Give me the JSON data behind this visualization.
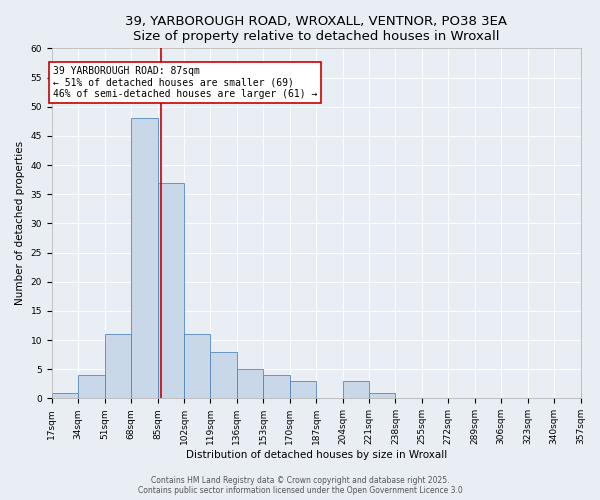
{
  "title_line1": "39, YARBOROUGH ROAD, WROXALL, VENTNOR, PO38 3EA",
  "title_line2": "Size of property relative to detached houses in Wroxall",
  "xlabel": "Distribution of detached houses by size in Wroxall",
  "ylabel": "Number of detached properties",
  "bin_edges": [
    17,
    34,
    51,
    68,
    85,
    102,
    119,
    136,
    153,
    170,
    187,
    204,
    221,
    238,
    255,
    272,
    289,
    306,
    323,
    340,
    357
  ],
  "bar_heights": [
    1,
    4,
    11,
    48,
    37,
    11,
    8,
    5,
    4,
    3,
    0,
    3,
    1,
    0,
    0,
    0,
    0,
    0,
    0,
    0
  ],
  "bar_color": "#c8d8e8",
  "bar_edge_color": "#5588bb",
  "vline_x": 87,
  "vline_color": "#cc0000",
  "annotation_text": "39 YARBOROUGH ROAD: 87sqm\n← 51% of detached houses are smaller (69)\n46% of semi-detached houses are larger (61) →",
  "annotation_box_color": "#ffffff",
  "annotation_box_edge": "#cc0000",
  "ylim": [
    0,
    60
  ],
  "yticks": [
    0,
    5,
    10,
    15,
    20,
    25,
    30,
    35,
    40,
    45,
    50,
    55,
    60
  ],
  "background_color": "#e8eef4",
  "grid_color": "#ffffff",
  "footer_text": "Contains HM Land Registry data © Crown copyright and database right 2025.\nContains public sector information licensed under the Open Government Licence 3.0",
  "title_fontsize": 9.5,
  "axis_label_fontsize": 7.5,
  "tick_fontsize": 6.5,
  "annotation_fontsize": 7,
  "footer_fontsize": 5.5
}
